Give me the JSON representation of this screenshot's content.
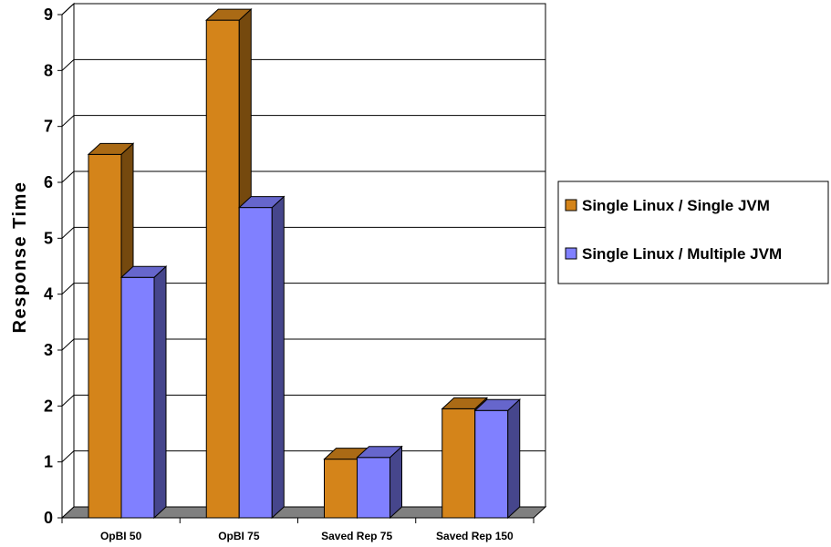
{
  "chart_data": {
    "type": "bar",
    "title": "",
    "xlabel": "",
    "ylabel": "Response Time",
    "ylim": [
      0,
      9
    ],
    "yticks": [
      "0",
      "1",
      "2",
      "3",
      "4",
      "5",
      "6",
      "7",
      "8",
      "9"
    ],
    "grid": true,
    "legend_position": "right",
    "categories": [
      "OpBI 50",
      "OpBI 75",
      "Saved Rep 75",
      "Saved Rep 150"
    ],
    "series": [
      {
        "name": "Single Linux / Single JVM",
        "values": [
          6.5,
          8.9,
          1.05,
          1.95
        ],
        "color": "#D4841A"
      },
      {
        "name": "Single Linux / Multiple JVM",
        "values": [
          4.3,
          5.55,
          1.08,
          1.92
        ],
        "color": "#8080FF"
      }
    ]
  }
}
